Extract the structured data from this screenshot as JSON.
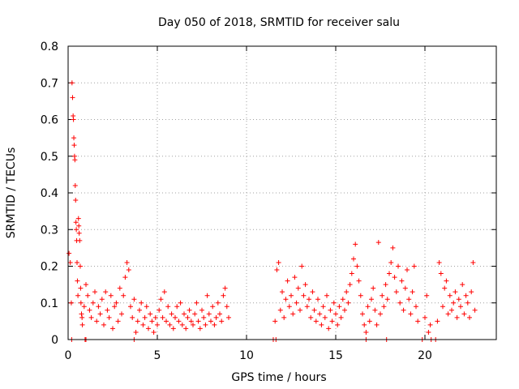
{
  "chart_data": {
    "type": "scatter",
    "title": "Day 050 of 2018, SRMTID for receiver salu",
    "xlabel": "GPS time / hours",
    "ylabel": "SRMTID / TECUs",
    "xlim": [
      0,
      24
    ],
    "ylim": [
      0,
      0.8
    ],
    "xticks": [
      0,
      5,
      10,
      15,
      20
    ],
    "yticks": [
      0,
      0.1,
      0.2,
      0.3,
      0.4,
      0.5,
      0.6,
      0.7,
      0.8
    ],
    "xtick_labels": [
      "0",
      "5",
      "10",
      "15",
      "20"
    ],
    "ytick_labels": [
      "0",
      "0.1",
      "0.2",
      "0.3",
      "0.4",
      "0.5",
      "0.6",
      "0.7",
      "0.8"
    ],
    "grid": true,
    "marker_color": "#ff0000",
    "series": [
      {
        "name": "SRMTID",
        "marker": "plus",
        "points": [
          [
            0.05,
            0.235
          ],
          [
            0.12,
            0.21
          ],
          [
            0.18,
            0.1
          ],
          [
            0.22,
            0.7
          ],
          [
            0.25,
            0.66
          ],
          [
            0.28,
            0.61
          ],
          [
            0.3,
            0.6
          ],
          [
            0.32,
            0.55
          ],
          [
            0.34,
            0.53
          ],
          [
            0.36,
            0.5
          ],
          [
            0.38,
            0.49
          ],
          [
            0.4,
            0.42
          ],
          [
            0.42,
            0.38
          ],
          [
            0.44,
            0.32
          ],
          [
            0.46,
            0.3
          ],
          [
            0.48,
            0.27
          ],
          [
            0.5,
            0.21
          ],
          [
            0.52,
            0.16
          ],
          [
            0.55,
            0.12
          ],
          [
            0.58,
            0.33
          ],
          [
            0.6,
            0.31
          ],
          [
            0.62,
            0.29
          ],
          [
            0.65,
            0.27
          ],
          [
            0.68,
            0.2
          ],
          [
            0.7,
            0.14
          ],
          [
            0.72,
            0.1
          ],
          [
            0.75,
            0.07
          ],
          [
            0.78,
            0.06
          ],
          [
            0.8,
            0.04
          ],
          [
            0.9,
            0.09
          ],
          [
            1.0,
            0.15
          ],
          [
            1.1,
            0.12
          ],
          [
            1.2,
            0.08
          ],
          [
            1.3,
            0.06
          ],
          [
            1.4,
            0.1
          ],
          [
            1.5,
            0.13
          ],
          [
            1.6,
            0.05
          ],
          [
            1.7,
            0.09
          ],
          [
            1.8,
            0.07
          ],
          [
            1.9,
            0.11
          ],
          [
            2.0,
            0.04
          ],
          [
            2.1,
            0.13
          ],
          [
            2.2,
            0.08
          ],
          [
            2.3,
            0.06
          ],
          [
            2.4,
            0.12
          ],
          [
            2.5,
            0.03
          ],
          [
            2.6,
            0.09
          ],
          [
            2.7,
            0.1
          ],
          [
            2.8,
            0.05
          ],
          [
            2.9,
            0.14
          ],
          [
            3.0,
            0.07
          ],
          [
            3.1,
            0.12
          ],
          [
            3.2,
            0.17
          ],
          [
            3.3,
            0.21
          ],
          [
            3.4,
            0.19
          ],
          [
            3.5,
            0.09
          ],
          [
            3.6,
            0.06
          ],
          [
            3.7,
            0.11
          ],
          [
            3.8,
            0.02
          ],
          [
            3.9,
            0.05
          ],
          [
            4.0,
            0.08
          ],
          [
            4.1,
            0.1
          ],
          [
            4.2,
            0.04
          ],
          [
            4.3,
            0.06
          ],
          [
            4.4,
            0.09
          ],
          [
            4.5,
            0.03
          ],
          [
            4.6,
            0.07
          ],
          [
            4.7,
            0.05
          ],
          [
            4.8,
            0.02
          ],
          [
            4.9,
            0.06
          ],
          [
            5.0,
            0.04
          ],
          [
            5.1,
            0.08
          ],
          [
            5.2,
            0.11
          ],
          [
            5.3,
            0.06
          ],
          [
            5.4,
            0.13
          ],
          [
            5.5,
            0.05
          ],
          [
            5.6,
            0.09
          ],
          [
            5.7,
            0.04
          ],
          [
            5.8,
            0.07
          ],
          [
            5.9,
            0.03
          ],
          [
            6.0,
            0.06
          ],
          [
            6.1,
            0.09
          ],
          [
            6.2,
            0.05
          ],
          [
            6.3,
            0.1
          ],
          [
            6.4,
            0.04
          ],
          [
            6.5,
            0.07
          ],
          [
            6.6,
            0.03
          ],
          [
            6.7,
            0.06
          ],
          [
            6.8,
            0.08
          ],
          [
            6.9,
            0.05
          ],
          [
            7.0,
            0.04
          ],
          [
            7.1,
            0.07
          ],
          [
            7.2,
            0.1
          ],
          [
            7.3,
            0.05
          ],
          [
            7.4,
            0.03
          ],
          [
            7.5,
            0.08
          ],
          [
            7.6,
            0.06
          ],
          [
            7.7,
            0.04
          ],
          [
            7.8,
            0.12
          ],
          [
            7.9,
            0.07
          ],
          [
            8.0,
            0.05
          ],
          [
            8.1,
            0.09
          ],
          [
            8.2,
            0.04
          ],
          [
            8.3,
            0.06
          ],
          [
            8.4,
            0.1
          ],
          [
            8.5,
            0.07
          ],
          [
            8.6,
            0.05
          ],
          [
            8.7,
            0.12
          ],
          [
            8.8,
            0.14
          ],
          [
            8.9,
            0.09
          ],
          [
            9.0,
            0.06
          ],
          [
            11.6,
            0.05
          ],
          [
            11.7,
            0.19
          ],
          [
            11.8,
            0.21
          ],
          [
            11.9,
            0.08
          ],
          [
            12.0,
            0.13
          ],
          [
            12.1,
            0.06
          ],
          [
            12.2,
            0.11
          ],
          [
            12.3,
            0.16
          ],
          [
            12.4,
            0.09
          ],
          [
            12.5,
            0.12
          ],
          [
            12.6,
            0.07
          ],
          [
            12.7,
            0.17
          ],
          [
            12.8,
            0.1
          ],
          [
            12.9,
            0.14
          ],
          [
            13.0,
            0.08
          ],
          [
            13.1,
            0.2
          ],
          [
            13.2,
            0.12
          ],
          [
            13.3,
            0.15
          ],
          [
            13.4,
            0.09
          ],
          [
            13.5,
            0.11
          ],
          [
            13.6,
            0.06
          ],
          [
            13.7,
            0.13
          ],
          [
            13.8,
            0.08
          ],
          [
            13.9,
            0.05
          ],
          [
            14.0,
            0.11
          ],
          [
            14.1,
            0.07
          ],
          [
            14.2,
            0.04
          ],
          [
            14.3,
            0.09
          ],
          [
            14.4,
            0.06
          ],
          [
            14.5,
            0.12
          ],
          [
            14.6,
            0.03
          ],
          [
            14.7,
            0.08
          ],
          [
            14.8,
            0.05
          ],
          [
            14.9,
            0.1
          ],
          [
            15.0,
            0.07
          ],
          [
            15.1,
            0.04
          ],
          [
            15.2,
            0.09
          ],
          [
            15.3,
            0.06
          ],
          [
            15.4,
            0.11
          ],
          [
            15.5,
            0.08
          ],
          [
            15.6,
            0.13
          ],
          [
            15.7,
            0.1
          ],
          [
            15.8,
            0.15
          ],
          [
            15.9,
            0.18
          ],
          [
            16.0,
            0.22
          ],
          [
            16.1,
            0.26
          ],
          [
            16.2,
            0.2
          ],
          [
            16.3,
            0.16
          ],
          [
            16.4,
            0.12
          ],
          [
            16.5,
            0.07
          ],
          [
            16.6,
            0.04
          ],
          [
            16.7,
            0.02
          ],
          [
            16.8,
            0.09
          ],
          [
            16.9,
            0.05
          ],
          [
            17.0,
            0.11
          ],
          [
            17.1,
            0.14
          ],
          [
            17.2,
            0.08
          ],
          [
            17.3,
            0.04
          ],
          [
            17.4,
            0.265
          ],
          [
            17.5,
            0.07
          ],
          [
            17.6,
            0.12
          ],
          [
            17.7,
            0.09
          ],
          [
            17.8,
            0.15
          ],
          [
            17.9,
            0.11
          ],
          [
            18.0,
            0.18
          ],
          [
            18.1,
            0.21
          ],
          [
            18.2,
            0.25
          ],
          [
            18.3,
            0.17
          ],
          [
            18.4,
            0.13
          ],
          [
            18.5,
            0.2
          ],
          [
            18.6,
            0.1
          ],
          [
            18.7,
            0.16
          ],
          [
            18.8,
            0.08
          ],
          [
            18.9,
            0.14
          ],
          [
            19.0,
            0.19
          ],
          [
            19.1,
            0.11
          ],
          [
            19.2,
            0.07
          ],
          [
            19.3,
            0.13
          ],
          [
            19.4,
            0.2
          ],
          [
            19.5,
            0.09
          ],
          [
            19.6,
            0.05
          ],
          [
            20.0,
            0.06
          ],
          [
            20.1,
            0.12
          ],
          [
            20.2,
            0.02
          ],
          [
            20.3,
            0.04
          ],
          [
            20.7,
            0.05
          ],
          [
            20.8,
            0.21
          ],
          [
            20.9,
            0.18
          ],
          [
            21.0,
            0.09
          ],
          [
            21.1,
            0.14
          ],
          [
            21.2,
            0.16
          ],
          [
            21.3,
            0.07
          ],
          [
            21.4,
            0.12
          ],
          [
            21.5,
            0.08
          ],
          [
            21.6,
            0.1
          ],
          [
            21.7,
            0.13
          ],
          [
            21.8,
            0.06
          ],
          [
            21.9,
            0.11
          ],
          [
            22.0,
            0.09
          ],
          [
            22.1,
            0.15
          ],
          [
            22.2,
            0.07
          ],
          [
            22.3,
            0.12
          ],
          [
            22.4,
            0.1
          ],
          [
            22.5,
            0.06
          ],
          [
            22.6,
            0.13
          ],
          [
            22.7,
            0.21
          ],
          [
            22.8,
            0.08
          ],
          [
            0.2,
            0.0
          ],
          [
            0.95,
            0.0
          ],
          [
            1.0,
            0.0
          ],
          [
            3.7,
            0.0
          ],
          [
            11.5,
            0.0
          ],
          [
            11.65,
            0.0
          ],
          [
            16.7,
            0.0
          ],
          [
            17.85,
            0.0
          ],
          [
            19.85,
            0.0
          ],
          [
            20.35,
            0.0
          ],
          [
            20.6,
            0.0
          ]
        ]
      }
    ]
  }
}
